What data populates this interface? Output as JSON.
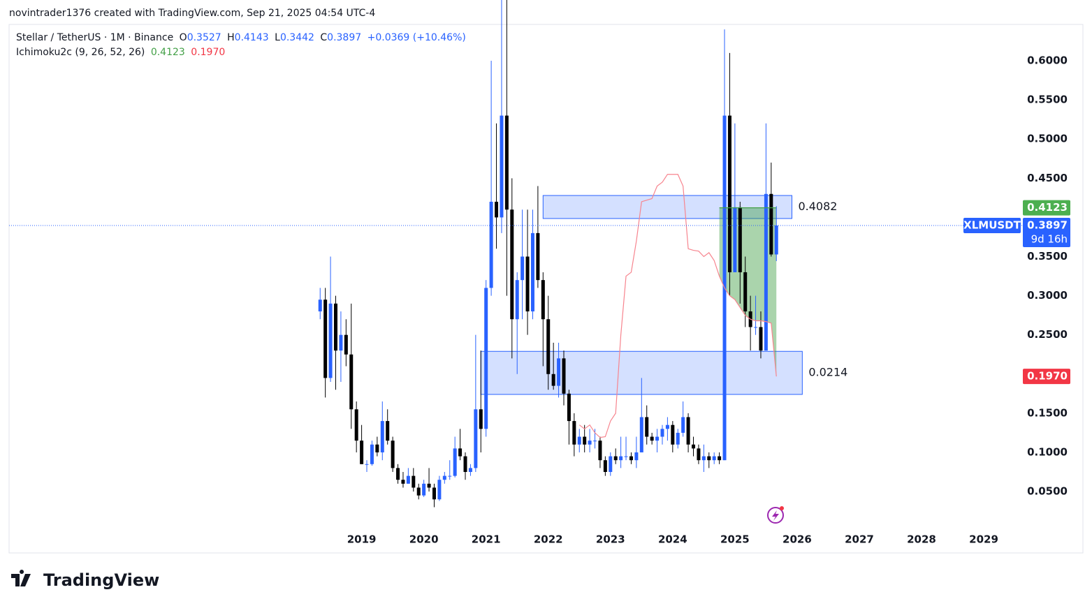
{
  "chart_data": {
    "type": "candlestick",
    "header": "novintrader1376 created with TradingView.com, Sep 21, 2025 04:54 UTC-4",
    "title": "Stellar / TetherUS · 1M · Binance",
    "ohlc_labels": [
      "O",
      "H",
      "L",
      "C"
    ],
    "change": "+0.0369 (+10.46%)",
    "indicator": "Ichimoku2c (9, 26, 52, 26)",
    "symbol": "XLMUSDT",
    "countdown": "9d 16h",
    "footer": "TradingView",
    "up_color": "#2962ff",
    "down_color": "#000000",
    "x": [
      "2018-05",
      "2018-06",
      "2018-07",
      "2018-08",
      "2018-09",
      "2018-10",
      "2018-11",
      "2018-12",
      "2019-01",
      "2019-02",
      "2019-03",
      "2019-04",
      "2019-05",
      "2019-06",
      "2019-07",
      "2019-08",
      "2019-09",
      "2019-10",
      "2019-11",
      "2019-12",
      "2020-01",
      "2020-02",
      "2020-03",
      "2020-04",
      "2020-05",
      "2020-06",
      "2020-07",
      "2020-08",
      "2020-09",
      "2020-10",
      "2020-11",
      "2020-12",
      "2021-01",
      "2021-02",
      "2021-03",
      "2021-04",
      "2021-05",
      "2021-06",
      "2021-07",
      "2021-08",
      "2021-09",
      "2021-10",
      "2021-11",
      "2021-12",
      "2022-01",
      "2022-02",
      "2022-03",
      "2022-04",
      "2022-05",
      "2022-06",
      "2022-07",
      "2022-08",
      "2022-09",
      "2022-10",
      "2022-11",
      "2022-12",
      "2023-01",
      "2023-02",
      "2023-03",
      "2023-04",
      "2023-05",
      "2023-06",
      "2023-07",
      "2023-08",
      "2023-09",
      "2023-10",
      "2023-11",
      "2023-12",
      "2024-01",
      "2024-02",
      "2024-03",
      "2024-04",
      "2024-05",
      "2024-06",
      "2024-07",
      "2024-08",
      "2024-09",
      "2024-10",
      "2024-11",
      "2024-12",
      "2025-01",
      "2025-02",
      "2025-03",
      "2025-04",
      "2025-05",
      "2025-06",
      "2025-07",
      "2025-08",
      "2025-09"
    ],
    "open": [
      0.28,
      0.295,
      0.195,
      0.29,
      0.23,
      0.25,
      0.225,
      0.155,
      0.115,
      0.085,
      0.085,
      0.11,
      0.1,
      0.14,
      0.115,
      0.08,
      0.065,
      0.06,
      0.07,
      0.055,
      0.045,
      0.06,
      0.055,
      0.04,
      0.065,
      0.07,
      0.07,
      0.105,
      0.095,
      0.075,
      0.08,
      0.155,
      0.13,
      0.31,
      0.42,
      0.4,
      0.53,
      0.41,
      0.27,
      0.32,
      0.35,
      0.28,
      0.38,
      0.32,
      0.27,
      0.2,
      0.185,
      0.22,
      0.175,
      0.14,
      0.11,
      0.12,
      0.11,
      0.115,
      0.115,
      0.09,
      0.075,
      0.095,
      0.09,
      0.095,
      0.095,
      0.09,
      0.1,
      0.145,
      0.12,
      0.115,
      0.12,
      0.13,
      0.135,
      0.11,
      0.125,
      0.145,
      0.11,
      0.105,
      0.09,
      0.095,
      0.09,
      0.095,
      0.09,
      0.53,
      0.33,
      0.413,
      0.33,
      0.28,
      0.26,
      0.26,
      0.23,
      0.43,
      0.3527
    ],
    "high": [
      0.31,
      0.31,
      0.35,
      0.3,
      0.28,
      0.27,
      0.29,
      0.165,
      0.135,
      0.09,
      0.115,
      0.12,
      0.165,
      0.155,
      0.12,
      0.085,
      0.075,
      0.08,
      0.08,
      0.06,
      0.065,
      0.08,
      0.06,
      0.07,
      0.075,
      0.09,
      0.12,
      0.13,
      0.1,
      0.085,
      0.25,
      0.23,
      0.32,
      0.6,
      0.52,
      0.69,
      0.79,
      0.45,
      0.33,
      0.41,
      0.41,
      0.41,
      0.44,
      0.33,
      0.3,
      0.24,
      0.24,
      0.23,
      0.18,
      0.15,
      0.13,
      0.135,
      0.13,
      0.13,
      0.12,
      0.095,
      0.1,
      0.105,
      0.12,
      0.12,
      0.1,
      0.12,
      0.195,
      0.16,
      0.125,
      0.13,
      0.135,
      0.145,
      0.14,
      0.13,
      0.165,
      0.15,
      0.12,
      0.11,
      0.11,
      0.1,
      0.1,
      0.1,
      0.64,
      0.61,
      0.52,
      0.42,
      0.35,
      0.3,
      0.3,
      0.28,
      0.52,
      0.47,
      0.4143
    ],
    "low": [
      0.27,
      0.17,
      0.19,
      0.18,
      0.19,
      0.21,
      0.13,
      0.1,
      0.085,
      0.075,
      0.083,
      0.095,
      0.09,
      0.11,
      0.075,
      0.06,
      0.055,
      0.06,
      0.05,
      0.04,
      0.043,
      0.05,
      0.03,
      0.038,
      0.06,
      0.065,
      0.068,
      0.09,
      0.065,
      0.07,
      0.075,
      0.1,
      0.12,
      0.3,
      0.36,
      0.38,
      0.3,
      0.22,
      0.2,
      0.27,
      0.25,
      0.27,
      0.31,
      0.21,
      0.18,
      0.18,
      0.17,
      0.16,
      0.11,
      0.095,
      0.1,
      0.1,
      0.1,
      0.105,
      0.08,
      0.07,
      0.07,
      0.085,
      0.08,
      0.09,
      0.085,
      0.08,
      0.1,
      0.11,
      0.11,
      0.1,
      0.11,
      0.115,
      0.1,
      0.105,
      0.12,
      0.1,
      0.095,
      0.085,
      0.075,
      0.08,
      0.085,
      0.085,
      0.09,
      0.3,
      0.33,
      0.29,
      0.26,
      0.23,
      0.25,
      0.22,
      0.23,
      0.35,
      0.3442
    ],
    "close": [
      0.295,
      0.195,
      0.29,
      0.23,
      0.25,
      0.225,
      0.155,
      0.115,
      0.085,
      0.085,
      0.11,
      0.1,
      0.14,
      0.115,
      0.08,
      0.065,
      0.06,
      0.07,
      0.055,
      0.045,
      0.06,
      0.055,
      0.04,
      0.065,
      0.07,
      0.07,
      0.105,
      0.095,
      0.075,
      0.08,
      0.155,
      0.13,
      0.31,
      0.42,
      0.4,
      0.53,
      0.41,
      0.27,
      0.32,
      0.35,
      0.28,
      0.38,
      0.32,
      0.27,
      0.2,
      0.185,
      0.22,
      0.175,
      0.14,
      0.11,
      0.12,
      0.11,
      0.115,
      0.115,
      0.09,
      0.075,
      0.095,
      0.09,
      0.095,
      0.095,
      0.09,
      0.1,
      0.145,
      0.12,
      0.115,
      0.12,
      0.13,
      0.135,
      0.11,
      0.125,
      0.145,
      0.11,
      0.105,
      0.09,
      0.095,
      0.09,
      0.095,
      0.09,
      0.53,
      0.33,
      0.413,
      0.33,
      0.28,
      0.26,
      0.26,
      0.23,
      0.43,
      0.3527,
      0.3897
    ],
    "lines": [
      {
        "color": "#43a047",
        "last_label": "0.4123",
        "values": [
          null,
          null,
          null,
          null,
          null,
          null,
          null,
          null,
          null,
          null,
          null,
          null,
          null,
          null,
          null,
          null,
          null,
          null,
          null,
          null,
          null,
          null,
          null,
          null,
          null,
          null,
          null,
          null,
          null,
          null,
          null,
          null,
          null,
          null,
          null,
          null,
          null,
          null,
          null,
          null,
          null,
          null,
          null,
          null,
          null,
          null,
          null,
          null,
          null,
          null,
          null,
          null,
          null,
          null,
          null,
          null,
          null,
          null,
          null,
          null,
          null,
          null,
          null,
          null,
          null,
          null,
          null,
          null,
          null,
          null,
          null,
          null,
          null,
          null,
          null,
          null,
          null,
          0.4123,
          0.4123,
          0.4123,
          0.4123,
          0.4123,
          0.4123,
          0.4123,
          0.4123,
          0.4123,
          0.4123,
          0.4123,
          0.4123
        ]
      },
      {
        "color": "#f7848e",
        "last_label": "0.1970",
        "values": [
          null,
          null,
          null,
          null,
          null,
          null,
          null,
          null,
          null,
          null,
          null,
          null,
          null,
          null,
          null,
          null,
          null,
          null,
          null,
          null,
          null,
          null,
          null,
          null,
          null,
          null,
          null,
          null,
          null,
          null,
          null,
          null,
          null,
          null,
          null,
          null,
          null,
          null,
          null,
          null,
          null,
          null,
          null,
          null,
          null,
          null,
          null,
          null,
          null,
          null,
          0.135,
          0.13,
          0.135,
          0.125,
          0.119,
          0.12,
          0.14,
          0.15,
          0.25,
          0.325,
          0.33,
          0.37,
          0.42,
          0.422,
          0.424,
          0.44,
          0.445,
          0.455,
          0.455,
          0.455,
          0.44,
          0.36,
          0.358,
          0.357,
          0.35,
          0.355,
          0.345,
          0.325,
          0.31,
          0.3,
          0.295,
          0.285,
          0.275,
          0.27,
          0.268,
          0.268,
          0.267,
          0.265,
          0.197
        ]
      }
    ],
    "zones": [
      {
        "x": [
          "2021-12",
          "2025-12"
        ],
        "y": [
          0.3986,
          0.428
        ],
        "label": 0.4082
      },
      {
        "x": [
          "2020-12",
          "2026-02"
        ],
        "y": [
          0.174,
          0.229
        ],
        "label": 0.0214
      }
    ],
    "xlim": [
      "2013-05",
      "2029-08"
    ],
    "xticks": [
      {
        "value": "2019-01",
        "label": "2019"
      },
      {
        "value": "2020-01",
        "label": "2020"
      },
      {
        "value": "2021-01",
        "label": "2021"
      },
      {
        "value": "2022-01",
        "label": "2022"
      },
      {
        "value": "2023-01",
        "label": "2023"
      },
      {
        "value": "2024-01",
        "label": "2024"
      },
      {
        "value": "2025-01",
        "label": "2025"
      },
      {
        "value": "2026-01",
        "label": "2026"
      },
      {
        "value": "2027-01",
        "label": "2027"
      },
      {
        "value": "2028-01",
        "label": "2028"
      },
      {
        "value": "2029-01",
        "label": "2029"
      }
    ],
    "ylim": [
      -0.0284,
      0.6464
    ],
    "yticks": [
      {
        "value": 0.05,
        "label": "0.0500"
      },
      {
        "value": 0.1,
        "label": "0.1000"
      },
      {
        "value": 0.15,
        "label": "0.1500"
      },
      {
        "value": 0.25,
        "label": "0.2500"
      },
      {
        "value": 0.3,
        "label": "0.3000"
      },
      {
        "value": 0.35,
        "label": "0.3500"
      },
      {
        "value": 0.45,
        "label": "0.4500"
      },
      {
        "value": 0.5,
        "label": "0.5000"
      },
      {
        "value": 0.55,
        "label": "0.5500"
      },
      {
        "value": 0.6,
        "label": "0.6000"
      }
    ],
    "grid": false
  }
}
